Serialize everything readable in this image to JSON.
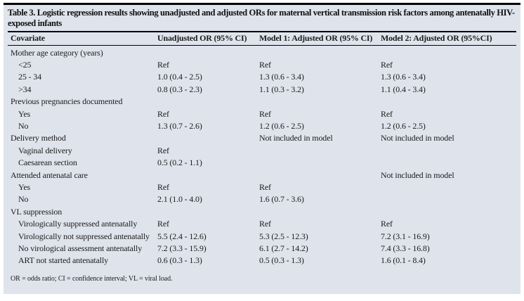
{
  "colors": {
    "card_background": "#dfe3ec",
    "rule": "#000000",
    "text": "#1b1b1b"
  },
  "table": {
    "title": "Table 3. Logistic regression results showing unadjusted and adjusted ORs for maternal vertical transmission risk factors among antenatally HIV-exposed infants",
    "columns": [
      "Covariate",
      "Unadjusted OR (95% CI)",
      "Model 1: Adjusted OR (95% CI)",
      "Model 2: Adjusted OR (95%CI)"
    ],
    "rows": [
      {
        "label": "Mother age category (years)",
        "indent": 0,
        "values": [
          "",
          "",
          ""
        ]
      },
      {
        "label": "<25",
        "indent": 1,
        "values": [
          "Ref",
          "Ref",
          "Ref"
        ]
      },
      {
        "label": "25 - 34",
        "indent": 1,
        "values": [
          "1.0 (0.4 - 2.5)",
          "1.3 (0.6 - 3.4)",
          "1.3 (0.6 - 3.4)"
        ]
      },
      {
        "label": ">34",
        "indent": 1,
        "values": [
          "0.8 (0.3 - 2.3)",
          "1.1 (0.3 - 3.2)",
          "1.1 (0.4 - 3.4)"
        ]
      },
      {
        "label": "Previous pregnancies documented",
        "indent": 0,
        "values": [
          "",
          "",
          ""
        ]
      },
      {
        "label": "Yes",
        "indent": 1,
        "values": [
          "Ref",
          "Ref",
          "Ref"
        ]
      },
      {
        "label": "No",
        "indent": 1,
        "values": [
          "1.3 (0.7 - 2.6)",
          "1.2 (0.6 - 2.5)",
          "1.2 (0.6 - 2.5)"
        ]
      },
      {
        "label": "Delivery method",
        "indent": 0,
        "values": [
          "",
          "Not included in model",
          "Not included in model"
        ]
      },
      {
        "label": "Vaginal delivery",
        "indent": 1,
        "values": [
          "Ref",
          "",
          ""
        ]
      },
      {
        "label": "Caesarean section",
        "indent": 1,
        "values": [
          "0.5 (0.2 - 1.1)",
          "",
          ""
        ]
      },
      {
        "label": "Attended antenatal care",
        "indent": 0,
        "values": [
          "",
          "",
          "Not included in model"
        ]
      },
      {
        "label": "Yes",
        "indent": 1,
        "values": [
          "Ref",
          "Ref",
          ""
        ]
      },
      {
        "label": "No",
        "indent": 1,
        "values": [
          "2.1 (1.0 - 4.0)",
          "1.6 (0.7 - 3.6)",
          ""
        ]
      },
      {
        "label": "VL suppression",
        "indent": 0,
        "values": [
          "",
          "",
          ""
        ]
      },
      {
        "label": "Virologically suppressed antenatally",
        "indent": 1,
        "values": [
          "Ref",
          "Ref",
          "Ref"
        ]
      },
      {
        "label": "Virologically not suppressed antenatally",
        "indent": 1,
        "values": [
          "5.5 (2.4 - 12.6)",
          "5.3 (2.5 - 12.3)",
          "7.2 (3.1 - 16.9)"
        ]
      },
      {
        "label": "No virological assessment antenatally",
        "indent": 1,
        "values": [
          "7.2 (3.3 - 15.9)",
          "6.1 (2.7 - 14.2)",
          "7.4 (3.3 - 16.8)"
        ]
      },
      {
        "label": "ART not started antenatally",
        "indent": 1,
        "values": [
          "0.6 (0.3 - 1.3)",
          "0.5 (0.3 - 1.3)",
          "1.6 (0.1 - 8.4)"
        ]
      }
    ],
    "footnote": "OR = odds ratio; CI = confidence interval; VL = viral load."
  }
}
